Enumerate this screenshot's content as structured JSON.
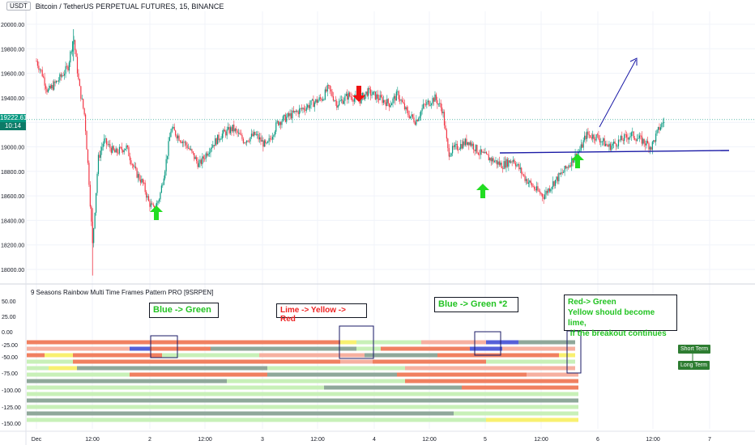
{
  "header": {
    "currency_badge": "USDT",
    "title": "Bitcoin / TetherUS PERPETUAL FUTURES, 15, BINANCE"
  },
  "price_axis": {
    "ticks": [
      "20000.00",
      "19800.00",
      "19600.00",
      "19400.00",
      "19200.00",
      "19000.00",
      "18800.00",
      "18600.00",
      "18400.00",
      "18200.00",
      "18000.00"
    ],
    "current_price": "19222.61",
    "countdown": "10:14"
  },
  "indicator": {
    "title": "9 Seasons Rainbow Multi Time Frames Pattern PRO [9SRPEN]",
    "ticks": [
      "50.00",
      "25.00",
      "0.00",
      "-25.00",
      "-50.00",
      "-75.00",
      "-100.00",
      "-125.00",
      "-150.00"
    ],
    "labels": {
      "short_term": "Short Term",
      "long_term": "Long Term"
    }
  },
  "time_axis": {
    "ticks": [
      "Dec",
      "12:00",
      "2",
      "12:00",
      "3",
      "12:00",
      "4",
      "12:00",
      "5",
      "12:00",
      "6",
      "12:00",
      "7"
    ]
  },
  "annotations": [
    {
      "text": "Blue -> Green",
      "color": "green"
    },
    {
      "text": "Lime -> Yellow -> Red",
      "color": "red"
    },
    {
      "text": "Blue -> Green *2",
      "color": "green"
    },
    {
      "lines": [
        "Red-> Green",
        "Yellow should become lime,",
        " if the breakout continues"
      ],
      "color": "green"
    }
  ],
  "colors": {
    "up": "#089981",
    "down": "#f23645",
    "arrow_up": "#22dd22",
    "arrow_down": "#ee1111",
    "trend_line": "#1a1aa6",
    "rainbow": [
      "#f08060",
      "#f6b0a0",
      "#c8f0b8",
      "#8fa89a",
      "#f8f070",
      "#5560d8",
      "#4caf50"
    ]
  },
  "chart_data": {
    "type": "candlestick",
    "ylim": [
      17900,
      20100
    ],
    "xlim": [
      "Dec 1 00:00",
      "Dec 7 06:00"
    ],
    "close_path": [
      [
        0,
        19700
      ],
      [
        0.05,
        19600
      ],
      [
        0.1,
        19450
      ],
      [
        0.2,
        19550
      ],
      [
        0.28,
        19650
      ],
      [
        0.33,
        19900
      ],
      [
        0.38,
        19500
      ],
      [
        0.43,
        19250
      ],
      [
        0.47,
        18700
      ],
      [
        0.5,
        18200
      ],
      [
        0.55,
        18900
      ],
      [
        0.6,
        19050
      ],
      [
        0.7,
        18950
      ],
      [
        0.8,
        19000
      ],
      [
        0.88,
        18800
      ],
      [
        0.95,
        18700
      ],
      [
        1.0,
        18550
      ],
      [
        1.05,
        18480
      ],
      [
        1.1,
        18600
      ],
      [
        1.15,
        18850
      ],
      [
        1.2,
        19150
      ],
      [
        1.25,
        19100
      ],
      [
        1.35,
        19000
      ],
      [
        1.45,
        18850
      ],
      [
        1.55,
        19000
      ],
      [
        1.65,
        19100
      ],
      [
        1.75,
        19150
      ],
      [
        1.85,
        19050
      ],
      [
        1.95,
        19100
      ],
      [
        2.05,
        19000
      ],
      [
        2.15,
        19200
      ],
      [
        2.25,
        19250
      ],
      [
        2.35,
        19300
      ],
      [
        2.45,
        19350
      ],
      [
        2.55,
        19400
      ],
      [
        2.6,
        19480
      ],
      [
        2.68,
        19350
      ],
      [
        2.78,
        19420
      ],
      [
        2.88,
        19380
      ],
      [
        2.95,
        19450
      ],
      [
        3.05,
        19400
      ],
      [
        3.15,
        19350
      ],
      [
        3.22,
        19430
      ],
      [
        3.3,
        19280
      ],
      [
        3.38,
        19210
      ],
      [
        3.45,
        19330
      ],
      [
        3.55,
        19400
      ],
      [
        3.62,
        19300
      ],
      [
        3.67,
        18950
      ],
      [
        3.75,
        19000
      ],
      [
        3.85,
        19050
      ],
      [
        3.95,
        18950
      ],
      [
        4.05,
        18900
      ],
      [
        4.15,
        18850
      ],
      [
        4.25,
        18900
      ],
      [
        4.35,
        18750
      ],
      [
        4.45,
        18650
      ],
      [
        4.52,
        18600
      ],
      [
        4.6,
        18700
      ],
      [
        4.7,
        18800
      ],
      [
        4.78,
        18900
      ],
      [
        4.85,
        18980
      ],
      [
        4.9,
        19100
      ],
      [
        5.0,
        19080
      ],
      [
        5.1,
        19000
      ],
      [
        5.2,
        19050
      ],
      [
        5.3,
        19100
      ],
      [
        5.4,
        19050
      ],
      [
        5.48,
        19000
      ],
      [
        5.55,
        19150
      ],
      [
        5.6,
        19220
      ]
    ]
  }
}
